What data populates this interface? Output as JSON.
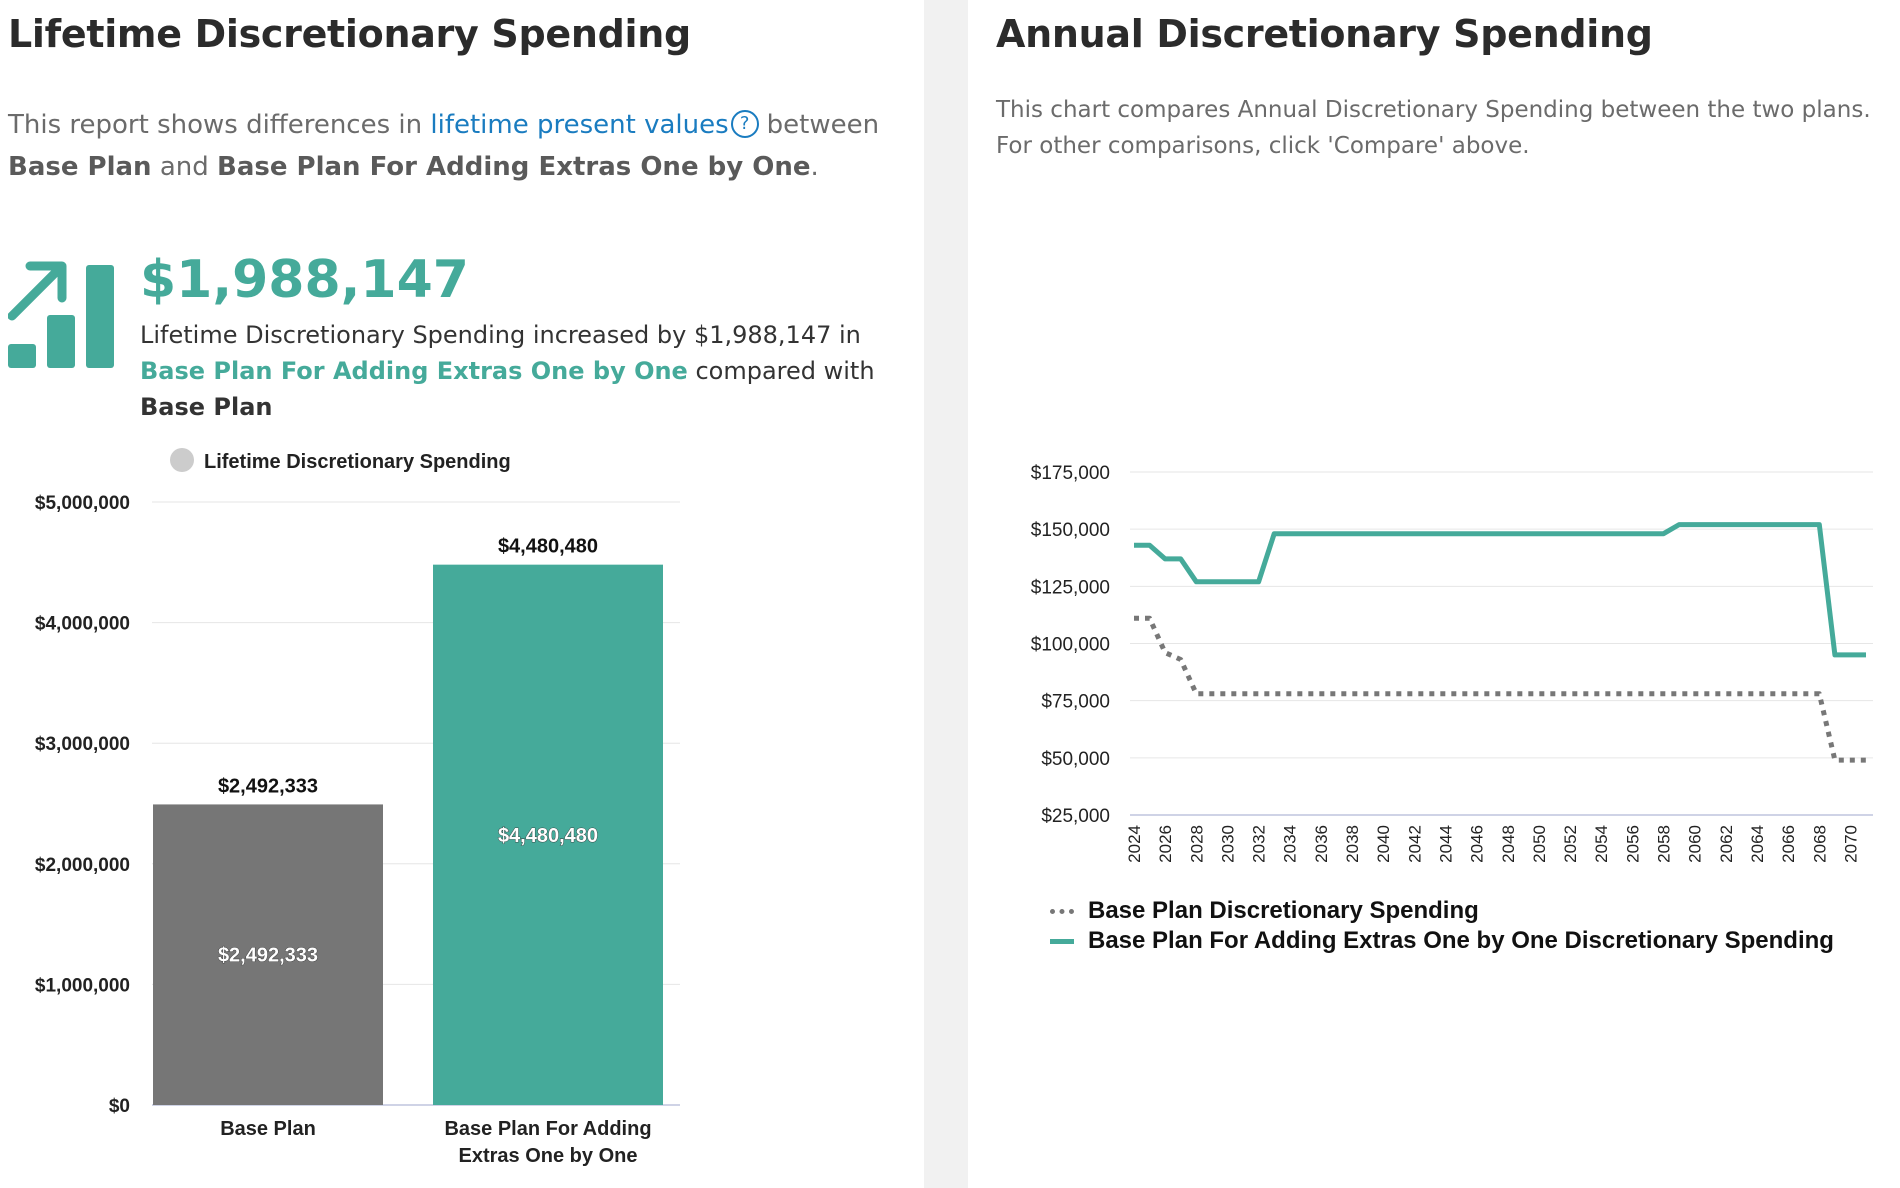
{
  "left": {
    "title": "Lifetime Discretionary Spending",
    "intro_prefix": "This report shows differences in",
    "intro_link": "lifetime present values",
    "help_icon": "question-circle-icon",
    "intro_between": "between",
    "intro_plan_a": "Base Plan",
    "intro_and": "and",
    "intro_plan_b": "Base Plan For Adding Extras One by One",
    "intro_period": ".",
    "trend_icon": "trending-up-bars-icon",
    "big_value": "$1,988,147",
    "summary_prefix": "Lifetime Discretionary Spending increased by $1,988,147 in",
    "summary_plan_b": "Base Plan For Adding Extras One by One",
    "summary_mid": "compared with",
    "summary_plan_a": "Base Plan"
  },
  "right": {
    "title": "Annual Discretionary Spending",
    "description": "This chart compares Annual Discretionary Spending between the two plans. For other comparisons, click 'Compare' above."
  },
  "colors": {
    "teal": "#45aa9a",
    "gray": "#767676",
    "link": "#1a7cc0",
    "dotted": "#777777"
  },
  "chart_data": [
    {
      "type": "bar",
      "title": "",
      "legend": [
        "Lifetime Discretionary Spending"
      ],
      "legend_position": "top-left",
      "categories": [
        "Base Plan",
        "Base Plan For Adding Extras One by One"
      ],
      "category_label_lines": [
        [
          "Base Plan"
        ],
        [
          "Base Plan For Adding",
          "Extras One by One"
        ]
      ],
      "values": [
        2492333,
        4480480
      ],
      "value_labels": [
        "$2,492,333",
        "$4,480,480"
      ],
      "bar_colors": [
        "#767676",
        "#45aa9a"
      ],
      "ylim": [
        0,
        5000000
      ],
      "yticks": [
        0,
        1000000,
        2000000,
        3000000,
        4000000,
        5000000
      ],
      "ytick_labels": [
        "$0",
        "$1,000,000",
        "$2,000,000",
        "$3,000,000",
        "$4,000,000",
        "$5,000,000"
      ],
      "xlabel": "",
      "ylabel": "",
      "grid": true
    },
    {
      "type": "line",
      "title": "",
      "x": [
        2024,
        2025,
        2026,
        2027,
        2028,
        2029,
        2030,
        2031,
        2032,
        2033,
        2034,
        2035,
        2036,
        2037,
        2038,
        2039,
        2040,
        2041,
        2042,
        2043,
        2044,
        2045,
        2046,
        2047,
        2048,
        2049,
        2050,
        2051,
        2052,
        2053,
        2054,
        2055,
        2056,
        2057,
        2058,
        2059,
        2060,
        2061,
        2062,
        2063,
        2064,
        2065,
        2066,
        2067,
        2068,
        2069,
        2070,
        2071
      ],
      "xtick_labels": [
        "2024",
        "2026",
        "2028",
        "2030",
        "2032",
        "2034",
        "2036",
        "2038",
        "2040",
        "2042",
        "2044",
        "2046",
        "2048",
        "2050",
        "2052",
        "2054",
        "2056",
        "2058",
        "2060",
        "2062",
        "2064",
        "2066",
        "2068",
        "2070"
      ],
      "series": [
        {
          "name": "Base Plan Discretionary Spending",
          "style": "dotted",
          "color": "#777777",
          "values": [
            111000,
            111000,
            96000,
            93000,
            78000,
            78000,
            78000,
            78000,
            78000,
            78000,
            78000,
            78000,
            78000,
            78000,
            78000,
            78000,
            78000,
            78000,
            78000,
            78000,
            78000,
            78000,
            78000,
            78000,
            78000,
            78000,
            78000,
            78000,
            78000,
            78000,
            78000,
            78000,
            78000,
            78000,
            78000,
            78000,
            78000,
            78000,
            78000,
            78000,
            78000,
            78000,
            78000,
            78000,
            78000,
            49000,
            49000,
            49000
          ]
        },
        {
          "name": "Base Plan For Adding Extras One by One Discretionary Spending",
          "style": "solid",
          "color": "#45aa9a",
          "values": [
            143000,
            143000,
            137000,
            137000,
            127000,
            127000,
            127000,
            127000,
            127000,
            148000,
            148000,
            148000,
            148000,
            148000,
            148000,
            148000,
            148000,
            148000,
            148000,
            148000,
            148000,
            148000,
            148000,
            148000,
            148000,
            148000,
            148000,
            148000,
            148000,
            148000,
            148000,
            148000,
            148000,
            148000,
            148000,
            152000,
            152000,
            152000,
            152000,
            152000,
            152000,
            152000,
            152000,
            152000,
            152000,
            95000,
            95000,
            95000
          ]
        }
      ],
      "ylim": [
        25000,
        175000
      ],
      "yticks": [
        25000,
        50000,
        75000,
        100000,
        125000,
        150000,
        175000
      ],
      "ytick_labels": [
        "$25,000",
        "$50,000",
        "$75,000",
        "$100,000",
        "$125,000",
        "$150,000",
        "$175,000"
      ],
      "legend_position": "bottom",
      "xlabel": "",
      "ylabel": "",
      "grid": true
    }
  ]
}
